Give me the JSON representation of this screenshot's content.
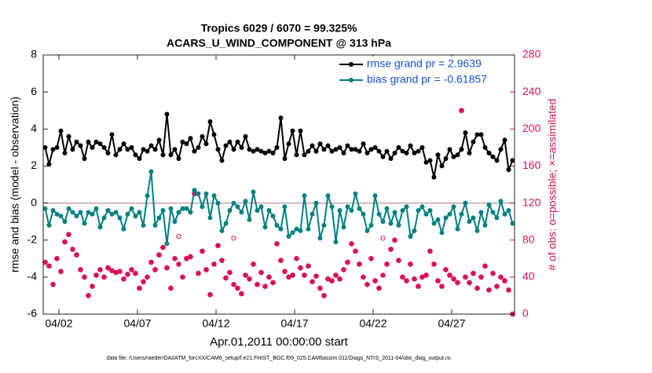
{
  "chart_data": {
    "type": "line",
    "title": "Tropics 6029 / 6070 = 99.325%",
    "subtitle": "ACARS_U_WIND_COMPONENT @ 313 hPa",
    "xlabel": "Apr.01,2011 00:00:00 start",
    "ylabel": "rmse and bias (model - observation)",
    "y2label": "# of obs: o=possible; ×=assimilated",
    "footnote": "data file: /Users/raeder/DAI/ATM_forcXX/CAM6_setup/f.e21.FHIST_BGC.f09_025.CAM6assim.011/Diags_NTrS_2011-04/obs_diag_output.nc",
    "xlim": [
      0,
      30
    ],
    "xticks": [
      {
        "value": 1,
        "label": "04/02"
      },
      {
        "value": 6,
        "label": "04/07"
      },
      {
        "value": 11,
        "label": "04/12"
      },
      {
        "value": 16,
        "label": "04/17"
      },
      {
        "value": 21,
        "label": "04/22"
      },
      {
        "value": 26,
        "label": "04/27"
      }
    ],
    "ylim": [
      -6,
      8
    ],
    "yticks": [
      -6,
      -4,
      -2,
      0,
      2,
      4,
      6,
      8
    ],
    "y2lim": [
      0,
      280
    ],
    "y2ticks": [
      0,
      40,
      80,
      120,
      160,
      200,
      240,
      280
    ],
    "zero_line": true,
    "legend": "upper right",
    "x": [
      0.125,
      0.375,
      0.625,
      0.875,
      1.125,
      1.375,
      1.625,
      1.875,
      2.125,
      2.375,
      2.625,
      2.875,
      3.125,
      3.375,
      3.625,
      3.875,
      4.125,
      4.375,
      4.625,
      4.875,
      5.125,
      5.375,
      5.625,
      5.875,
      6.125,
      6.375,
      6.625,
      6.875,
      7.125,
      7.375,
      7.625,
      7.875,
      8.125,
      8.375,
      8.625,
      8.875,
      9.125,
      9.375,
      9.625,
      9.875,
      10.125,
      10.375,
      10.625,
      10.875,
      11.125,
      11.375,
      11.625,
      11.875,
      12.125,
      12.375,
      12.625,
      12.875,
      13.125,
      13.375,
      13.625,
      13.875,
      14.125,
      14.375,
      14.625,
      14.875,
      15.125,
      15.375,
      15.625,
      15.875,
      16.125,
      16.375,
      16.625,
      16.875,
      17.125,
      17.375,
      17.625,
      17.875,
      18.125,
      18.375,
      18.625,
      18.875,
      19.125,
      19.375,
      19.625,
      19.875,
      20.125,
      20.375,
      20.625,
      20.875,
      21.125,
      21.375,
      21.625,
      21.875,
      22.125,
      22.375,
      22.625,
      22.875,
      23.125,
      23.375,
      23.625,
      23.875,
      24.125,
      24.375,
      24.625,
      24.875,
      25.125,
      25.375,
      25.625,
      25.875,
      26.125,
      26.375,
      26.625,
      26.875,
      27.125,
      27.375,
      27.625,
      27.875,
      28.125,
      28.375,
      28.625,
      28.875,
      29.125,
      29.375,
      29.625,
      29.875
    ],
    "series": [
      {
        "name": "rmse grand pr = 2.9639",
        "color": "#000000",
        "marker": "dot",
        "line": true,
        "values": [
          3.0,
          2.1,
          2.9,
          3.0,
          3.9,
          2.7,
          3.6,
          2.9,
          3.3,
          3.1,
          2.4,
          3.3,
          3.0,
          3.3,
          3.2,
          3.0,
          2.7,
          3.7,
          2.6,
          2.9,
          3.2,
          2.9,
          3.0,
          2.6,
          2.4,
          2.9,
          2.8,
          3.1,
          2.9,
          3.4,
          2.6,
          4.8,
          2.6,
          2.9,
          2.4,
          3.3,
          3.2,
          3.5,
          2.8,
          3.0,
          3.6,
          3.2,
          4.4,
          3.7,
          2.9,
          2.3,
          3.1,
          3.3,
          2.9,
          3.3,
          3.0,
          3.6,
          2.9,
          2.8,
          2.9,
          2.8,
          2.7,
          2.8,
          2.7,
          3.0,
          4.6,
          2.4,
          3.2,
          3.9,
          2.6,
          3.9,
          2.6,
          2.8,
          3.1,
          2.8,
          3.2,
          2.9,
          3.1,
          2.8,
          2.9,
          3.0,
          2.7,
          3.1,
          2.9,
          2.9,
          2.8,
          3.2,
          2.7,
          2.9,
          3.0,
          2.8,
          2.5,
          2.8,
          2.4,
          2.7,
          3.0,
          2.8,
          2.7,
          3.1,
          2.7,
          2.8,
          3.0,
          2.2,
          2.3,
          1.4,
          2.6,
          2.0,
          2.4,
          2.9,
          2.5,
          2.6,
          2.9,
          3.8,
          2.7,
          3.3,
          3.7,
          3.7,
          3.0,
          2.7,
          2.5,
          2.3,
          2.9,
          3.4,
          1.8,
          2.3
        ]
      },
      {
        "name": "bias grand pr = -0.61857",
        "color": "#008080",
        "marker": "dot",
        "line": true,
        "values": [
          -0.3,
          -1.2,
          -0.4,
          -0.6,
          -0.7,
          -1.0,
          -0.3,
          -0.5,
          -0.7,
          -0.5,
          -1.1,
          -0.5,
          -0.6,
          -0.3,
          -1.3,
          -0.8,
          -0.4,
          -0.6,
          -0.5,
          -0.8,
          -1.4,
          -0.6,
          -0.3,
          -0.7,
          -0.5,
          -1.2,
          0.4,
          1.7,
          -1.2,
          -0.8,
          -0.4,
          -2.2,
          -0.3,
          -1.0,
          -0.5,
          -0.3,
          -0.3,
          -0.5,
          0.7,
          0.5,
          -0.2,
          0.5,
          -0.8,
          0.4,
          0.0,
          -1.5,
          -1.1,
          -0.4,
          0.0,
          -0.2,
          -0.5,
          0.1,
          -0.9,
          0.6,
          -0.4,
          -0.2,
          -1.3,
          -0.4,
          -0.7,
          -1.2,
          -1.4,
          -0.2,
          -1.8,
          -1.6,
          -1.4,
          -1.5,
          0.4,
          -1.4,
          -0.6,
          0.0,
          -1.9,
          -1.2,
          0.4,
          -0.2,
          -2.1,
          -0.4,
          -1.3,
          -0.2,
          -0.4,
          0.5,
          -0.3,
          -0.6,
          -1.5,
          -1.2,
          0.4,
          -0.6,
          -1.0,
          -0.3,
          -1.1,
          -0.5,
          -1.2,
          -0.4,
          -0.2,
          -1.8,
          -1.5,
          -0.4,
          -0.2,
          -0.6,
          -0.4,
          -1.1,
          -0.9,
          -1.6,
          -0.8,
          -0.6,
          -0.2,
          -1.4,
          -0.6,
          0.0,
          -1.0,
          -0.8,
          -1.5,
          -0.5,
          -1.2,
          -0.1,
          -0.5,
          -0.8,
          0.1,
          -0.6,
          -0.4,
          -1.1
        ]
      },
      {
        "color": "#d6135a",
        "marker": "o",
        "line": false,
        "axis": "y2",
        "values": [
          56,
          52,
          32,
          60,
          46,
          78,
          86,
          70,
          64,
          48,
          40,
          20,
          30,
          42,
          48,
          40,
          50,
          47,
          45,
          46,
          38,
          43,
          48,
          44,
          28,
          35,
          40,
          56,
          48,
          64,
          72,
          50,
          28,
          60,
          84,
          40,
          60,
          62,
          130,
          44,
          68,
          48,
          21,
          54,
          74,
          58,
          39,
          45,
          82,
          28,
          22,
          42,
          38,
          54,
          32,
          45,
          30,
          40,
          34,
          76,
          58,
          46,
          40,
          42,
          60,
          50,
          42,
          52,
          35,
          41,
          28,
          20,
          38,
          36,
          42,
          38,
          48,
          56,
          76,
          68,
          54,
          40,
          32,
          60,
          36,
          28,
          82,
          54,
          70,
          80,
          58,
          40,
          36,
          54,
          38,
          30,
          40,
          42,
          68,
          54,
          36,
          30,
          48,
          42,
          38,
          34,
          220,
          40,
          34,
          44,
          28,
          40,
          52,
          26,
          44,
          30,
          40,
          36,
          26,
          0
        ]
      },
      {
        "color": "#d6135a",
        "marker": "asterisk",
        "line": false,
        "axis": "y2",
        "values": [
          56,
          52,
          32,
          60,
          46,
          78,
          86,
          70,
          64,
          48,
          40,
          20,
          30,
          42,
          48,
          40,
          50,
          47,
          45,
          46,
          38,
          43,
          48,
          44,
          28,
          35,
          40,
          56,
          48,
          64,
          72,
          50,
          28,
          60,
          54,
          40,
          60,
          62,
          130,
          44,
          68,
          48,
          21,
          54,
          74,
          58,
          39,
          45,
          32,
          28,
          22,
          42,
          38,
          54,
          32,
          45,
          30,
          40,
          34,
          76,
          58,
          46,
          40,
          42,
          60,
          50,
          42,
          52,
          35,
          41,
          28,
          20,
          38,
          36,
          42,
          38,
          48,
          56,
          76,
          68,
          54,
          40,
          32,
          60,
          36,
          28,
          42,
          54,
          70,
          80,
          58,
          40,
          36,
          54,
          38,
          30,
          40,
          42,
          68,
          54,
          36,
          30,
          48,
          42,
          38,
          34,
          220,
          40,
          34,
          44,
          28,
          40,
          52,
          26,
          44,
          30,
          40,
          36,
          26,
          0
        ]
      }
    ]
  }
}
